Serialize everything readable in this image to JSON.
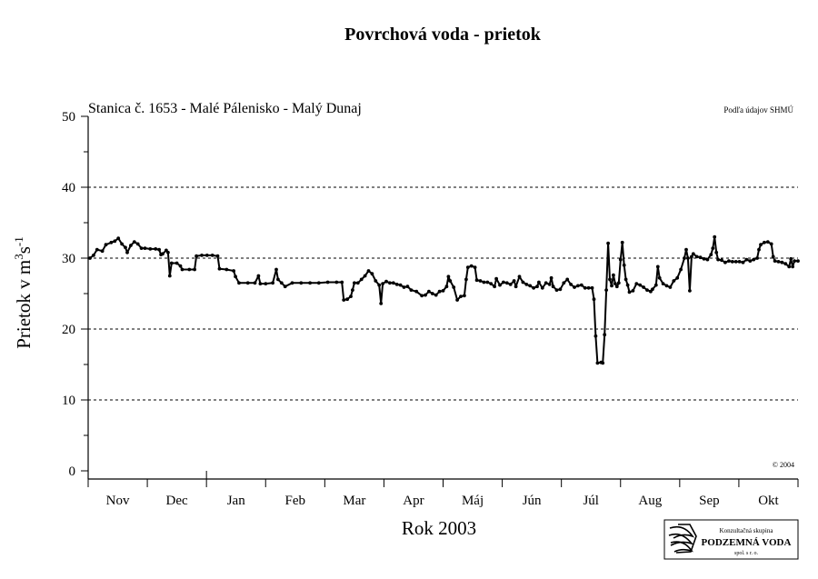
{
  "chart_data": {
    "type": "line",
    "title": "Povrchová voda - prietok",
    "subtitle": "Stanica č. 1653 - Malé Pálenisko - Malý Dunaj",
    "source_note": "Podľa údajov SHMÚ",
    "copyright": "© 2004",
    "xlabel": "Rok 2003",
    "ylabel_main": "Prietok  v  m",
    "ylabel_sup1": "3",
    "ylabel_mid": "s",
    "ylabel_sup2": "-1",
    "ylim": [
      0,
      50
    ],
    "yticks": [
      "0",
      "10",
      "20",
      "30",
      "40",
      "50"
    ],
    "grid": "dashed horizontal at 10, 20, 30, 40",
    "months": [
      "Nov",
      "Dec",
      "Jan",
      "Feb",
      "Mar",
      "Apr",
      "Máj",
      "Jún",
      "Júl",
      "Aug",
      "Sep",
      "Okt"
    ],
    "series": [
      {
        "values": [
          [
            1,
            30.0
          ],
          [
            3,
            30.4
          ],
          [
            5,
            31.2
          ],
          [
            8,
            31.0
          ],
          [
            10,
            31.9
          ],
          [
            13,
            32.2
          ],
          [
            15,
            32.4
          ],
          [
            17,
            32.8
          ],
          [
            19,
            32.0
          ],
          [
            21,
            31.5
          ],
          [
            22,
            30.8
          ],
          [
            24,
            31.8
          ],
          [
            26,
            32.3
          ],
          [
            28,
            32.0
          ],
          [
            30,
            31.4
          ],
          [
            32,
            31.4
          ],
          [
            35,
            31.3
          ],
          [
            38,
            31.3
          ],
          [
            40,
            31.2
          ],
          [
            41,
            30.5
          ],
          [
            42,
            30.6
          ],
          [
            44,
            31.1
          ],
          [
            45,
            30.8
          ],
          [
            46,
            27.5
          ],
          [
            47,
            29.3
          ],
          [
            50,
            29.3
          ],
          [
            52,
            28.9
          ],
          [
            53,
            28.4
          ],
          [
            57,
            28.4
          ],
          [
            60,
            28.4
          ],
          [
            61,
            30.3
          ],
          [
            64,
            30.4
          ],
          [
            67,
            30.4
          ],
          [
            70,
            30.4
          ],
          [
            73,
            30.3
          ],
          [
            74,
            28.5
          ],
          [
            78,
            28.4
          ],
          [
            82,
            28.2
          ],
          [
            83,
            27.4
          ],
          [
            85,
            26.5
          ],
          [
            90,
            26.5
          ],
          [
            94,
            26.5
          ],
          [
            96,
            27.5
          ],
          [
            97,
            26.4
          ],
          [
            100,
            26.4
          ],
          [
            104,
            26.5
          ],
          [
            106,
            28.4
          ],
          [
            107,
            27.0
          ],
          [
            109,
            26.5
          ],
          [
            111,
            26.0
          ],
          [
            115,
            26.5
          ],
          [
            120,
            26.5
          ],
          [
            125,
            26.5
          ],
          [
            130,
            26.5
          ],
          [
            135,
            26.6
          ],
          [
            140,
            26.6
          ],
          [
            143,
            26.6
          ],
          [
            144,
            24.1
          ],
          [
            146,
            24.2
          ],
          [
            148,
            24.6
          ],
          [
            149,
            25.5
          ],
          [
            150,
            26.5
          ],
          [
            152,
            26.5
          ],
          [
            154,
            27.0
          ],
          [
            156,
            27.5
          ],
          [
            158,
            28.2
          ],
          [
            160,
            27.8
          ],
          [
            162,
            26.8
          ],
          [
            164,
            26.2
          ],
          [
            165,
            23.6
          ],
          [
            166,
            26.4
          ],
          [
            168,
            26.7
          ],
          [
            170,
            26.5
          ],
          [
            172,
            26.5
          ],
          [
            174,
            26.3
          ],
          [
            176,
            26.2
          ],
          [
            178,
            25.9
          ],
          [
            180,
            26.0
          ],
          [
            182,
            25.5
          ],
          [
            185,
            25.3
          ],
          [
            188,
            24.7
          ],
          [
            190,
            24.8
          ],
          [
            192,
            25.3
          ],
          [
            194,
            25.0
          ],
          [
            196,
            24.8
          ],
          [
            198,
            25.3
          ],
          [
            200,
            25.4
          ],
          [
            202,
            26.0
          ],
          [
            203,
            27.4
          ],
          [
            204,
            26.8
          ],
          [
            206,
            25.9
          ],
          [
            208,
            24.1
          ],
          [
            210,
            24.6
          ],
          [
            212,
            24.7
          ],
          [
            213,
            27.0
          ],
          [
            214,
            28.7
          ],
          [
            216,
            28.9
          ],
          [
            218,
            28.7
          ],
          [
            219,
            26.9
          ],
          [
            221,
            26.8
          ],
          [
            223,
            26.6
          ],
          [
            225,
            26.6
          ],
          [
            227,
            26.4
          ],
          [
            229,
            26.0
          ],
          [
            230,
            27.1
          ],
          [
            232,
            26.2
          ],
          [
            234,
            26.6
          ],
          [
            236,
            26.5
          ],
          [
            238,
            26.3
          ],
          [
            240,
            26.8
          ],
          [
            241,
            26.0
          ],
          [
            243,
            27.4
          ],
          [
            245,
            26.6
          ],
          [
            247,
            26.3
          ],
          [
            249,
            26.1
          ],
          [
            251,
            25.8
          ],
          [
            253,
            26.0
          ],
          [
            254,
            26.6
          ],
          [
            256,
            25.8
          ],
          [
            258,
            26.5
          ],
          [
            260,
            26.3
          ],
          [
            261,
            27.2
          ],
          [
            262,
            26.0
          ],
          [
            264,
            25.5
          ],
          [
            266,
            25.6
          ],
          [
            268,
            26.5
          ],
          [
            270,
            27.0
          ],
          [
            272,
            26.3
          ],
          [
            274,
            25.9
          ],
          [
            276,
            26.1
          ],
          [
            278,
            26.2
          ],
          [
            280,
            25.8
          ],
          [
            282,
            25.8
          ],
          [
            284,
            25.8
          ],
          [
            285,
            24.2
          ],
          [
            286,
            19.0
          ],
          [
            287,
            15.2
          ],
          [
            289,
            15.3
          ],
          [
            290,
            15.2
          ],
          [
            291,
            19.2
          ],
          [
            292,
            25.5
          ],
          [
            293,
            32.1
          ],
          [
            294,
            27.0
          ],
          [
            295,
            26.1
          ],
          [
            296,
            27.6
          ],
          [
            297,
            26.4
          ],
          [
            298,
            26.0
          ],
          [
            299,
            26.5
          ],
          [
            300,
            29.8
          ],
          [
            301,
            32.2
          ],
          [
            302,
            29.0
          ],
          [
            303,
            27.0
          ],
          [
            304,
            26.2
          ],
          [
            305,
            25.2
          ],
          [
            307,
            25.4
          ],
          [
            309,
            26.4
          ],
          [
            311,
            26.2
          ],
          [
            313,
            25.9
          ],
          [
            315,
            25.5
          ],
          [
            317,
            25.3
          ],
          [
            318,
            25.6
          ],
          [
            320,
            26.2
          ],
          [
            321,
            28.8
          ],
          [
            322,
            27.2
          ],
          [
            324,
            26.4
          ],
          [
            326,
            26.1
          ],
          [
            328,
            25.9
          ],
          [
            330,
            26.8
          ],
          [
            332,
            27.2
          ],
          [
            334,
            28.4
          ],
          [
            336,
            30.0
          ],
          [
            337,
            31.2
          ],
          [
            338,
            30.0
          ],
          [
            339,
            25.4
          ],
          [
            340,
            30.2
          ],
          [
            341,
            30.6
          ],
          [
            343,
            30.2
          ],
          [
            345,
            30.1
          ],
          [
            347,
            29.9
          ],
          [
            349,
            29.8
          ],
          [
            351,
            30.5
          ],
          [
            352,
            31.4
          ],
          [
            353,
            33.0
          ],
          [
            354,
            30.8
          ],
          [
            355,
            29.8
          ],
          [
            357,
            29.7
          ],
          [
            359,
            29.4
          ],
          [
            361,
            29.6
          ],
          [
            363,
            29.5
          ],
          [
            365,
            29.5
          ],
          [
            367,
            29.5
          ],
          [
            369,
            29.4
          ],
          [
            371,
            29.8
          ],
          [
            373,
            29.6
          ],
          [
            375,
            29.8
          ],
          [
            377,
            30.0
          ],
          [
            378,
            31.2
          ],
          [
            379,
            31.9
          ],
          [
            381,
            32.2
          ],
          [
            383,
            32.3
          ],
          [
            385,
            32.0
          ],
          [
            386,
            30.2
          ],
          [
            387,
            29.6
          ],
          [
            389,
            29.5
          ],
          [
            391,
            29.4
          ],
          [
            393,
            29.2
          ],
          [
            395,
            28.8
          ],
          [
            396,
            29.9
          ],
          [
            397,
            28.8
          ],
          [
            398,
            29.6
          ],
          [
            400,
            29.6
          ]
        ]
      }
    ]
  },
  "logo": {
    "line1": "Konzultačná skupina",
    "line2": "PODZEMNÁ VODA",
    "line3": "spol. s r. o."
  }
}
